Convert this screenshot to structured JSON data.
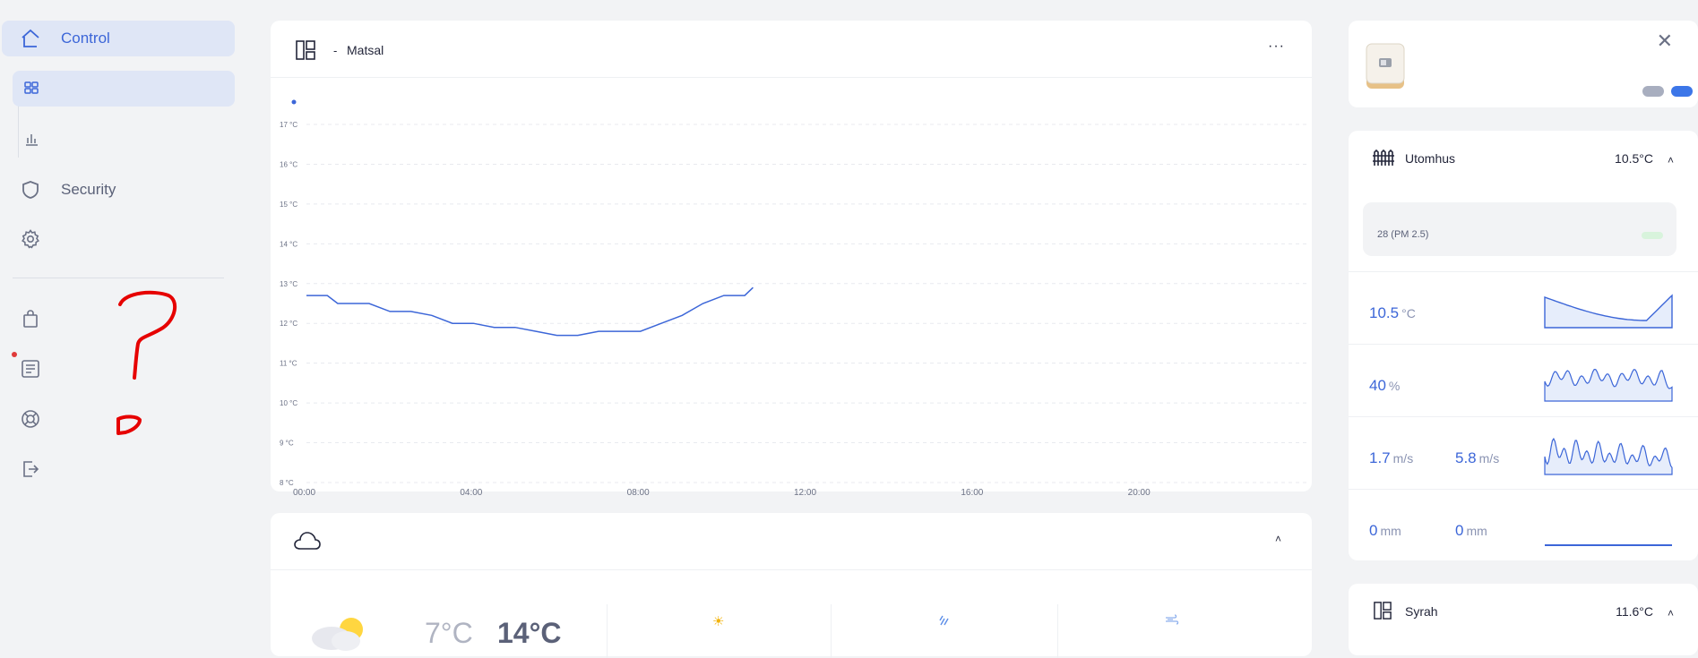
{
  "sidebar": {
    "control_label": "Control",
    "security_label": "Security",
    "icons": [
      "home-icon",
      "dashboard-grid-icon",
      "bar-chart-icon",
      "shield-icon",
      "gear-icon",
      "shopping-bag-icon",
      "news-icon",
      "help-lifebuoy-icon",
      "logout-icon"
    ]
  },
  "graph": {
    "room_name": "Matsal",
    "dash": "-",
    "menu": "···",
    "y_ticks": [
      "17 °C",
      "16 °C",
      "15 °C",
      "14 °C",
      "13 °C",
      "12 °C",
      "11 °C",
      "10 °C",
      "9 °C",
      "8 °C"
    ],
    "x_ticks": [
      "00:00",
      "04:00",
      "08:00",
      "12:00",
      "16:00",
      "20:00"
    ]
  },
  "chart_data": {
    "type": "line",
    "x_unit": "hours",
    "ylim": [
      8,
      17
    ],
    "series": [
      {
        "x": [
          0,
          0.5,
          0.75,
          1,
          1.5,
          2,
          2.5,
          3,
          3.5,
          4,
          4.5,
          5,
          5.5,
          6,
          6.5,
          7,
          7.5,
          8,
          8.5,
          9,
          9.5,
          10,
          10.5,
          10.7
        ],
        "values": [
          12.7,
          12.7,
          12.5,
          12.5,
          12.5,
          12.3,
          12.3,
          12.2,
          12.0,
          12.0,
          11.9,
          11.9,
          11.8,
          11.7,
          11.7,
          11.8,
          11.8,
          11.8,
          12.0,
          12.2,
          12.5,
          12.7,
          12.7,
          12.9
        ]
      }
    ],
    "colors": [
      "#3c66d8"
    ]
  },
  "weather": {
    "temp_low": "7°C",
    "temp_high": "14°C",
    "col_icons": [
      "sun-icon",
      "rain-icon",
      "wind-icon"
    ],
    "chevron": "˄"
  },
  "device": {
    "close": "✕",
    "pill_colors": [
      "#a8aebf",
      "#3c76e8"
    ]
  },
  "outdoor": {
    "name": "Utomhus",
    "temp": "10.5°C",
    "chevron": "˄",
    "air_quality": "28 (PM 2.5)",
    "metrics": {
      "temperature": {
        "value": "10.5",
        "unit": "°C"
      },
      "humidity": {
        "value": "40",
        "unit": "%"
      },
      "wind": {
        "value": "1.7",
        "unit": "m/s"
      },
      "gust": {
        "value": "5.8",
        "unit": "m/s"
      },
      "rain": {
        "value": "0",
        "unit": "mm"
      },
      "rain_sum": {
        "value": "0",
        "unit": "mm"
      }
    }
  },
  "room2": {
    "name": "Syrah",
    "temp": "11.6°C",
    "chevron": "˄"
  },
  "colors": {
    "accent": "#3c66d8",
    "background": "#f2f3f5",
    "annotation": "#e60000"
  }
}
